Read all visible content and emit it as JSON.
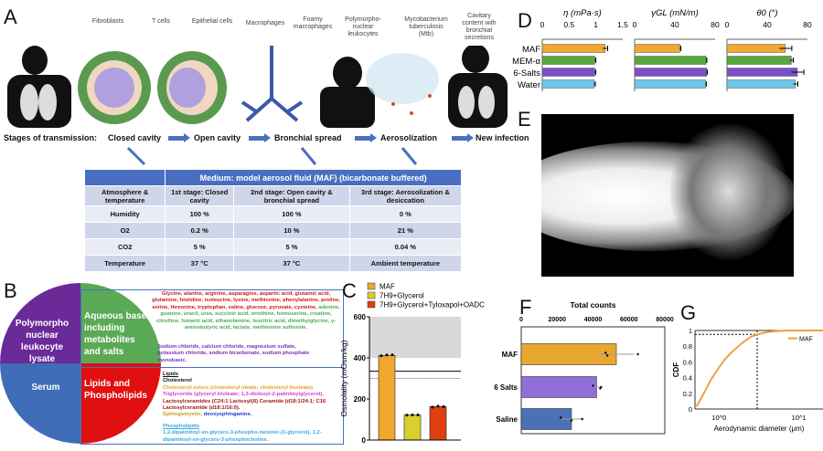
{
  "panel_labels": {
    "a": "A",
    "b": "B",
    "c": "C",
    "d": "D",
    "e": "E",
    "f": "F",
    "g": "G"
  },
  "panel_a": {
    "cells": [
      "Fibroblasts",
      "T cells",
      "Epithelial cells",
      "Macrophages",
      "Foamy macrophages",
      "Polymorpho-nuclear leukocytes",
      "Mycobacterium tuberculosis (Mtb)",
      "Cavitary content with bronchial secretions"
    ],
    "stages_label": "Stages of transmission:",
    "stages": [
      "Closed cavity",
      "Open cavity",
      "Bronchial spread",
      "Aerosolization",
      "New infection"
    ],
    "table": {
      "title": "Medium: model aerosol fluid (MAF) (bicarbonate buffered)",
      "header": [
        "Atmosphere & temperature",
        "1st stage: Closed cavity",
        "2nd stage: Open cavity & bronchial spread",
        "3rd stage: Aerosolization & desiccation"
      ],
      "rows": [
        [
          "Humidity",
          "100 %",
          "100 %",
          "0 %"
        ],
        [
          "O2",
          "0.2 %",
          "10 %",
          "21 %"
        ],
        [
          "CO2",
          "5 %",
          "5 %",
          "0.04 %"
        ],
        [
          "Temperature",
          "37 °C",
          "37 °C",
          "Ambient temperature"
        ]
      ]
    }
  },
  "panel_b": {
    "quadrants": [
      "Polymorpho nuclear leukocyte lysate",
      "Aqueous base including metabolites and salts",
      "Serum",
      "Lipids and Phospholipids"
    ],
    "amino": "Glycine, alanine, arginine, asparagine, aspartic acid, glutamic acid, glutamine, histidine, isoleucine, lysine, methionine, phenylalanine, proline, serine, threonine, tryptophan, valine, glucose, pyruvate, cysteine,",
    "metabolites": "adenine, guanine, uracil, urea, succinic acid, ornithine, homoserine, creatine, citrulline, fumaric acid, ethanolamine, isocitric acid, dimethylglycine, γ-aminobutyric acid, lactate, methionine sulfoxide.",
    "salts": "Sodium chloride, calcium chloride, magnesium sulfate, potassium chloride, sodium bicarbonate, sodium phosphate monobasic.",
    "lipids_title": "Lipids",
    "lipids": [
      {
        "text": "Cholesterol",
        "color": "#111111"
      },
      {
        "text": "Cholesteryl esters (cholesteryl oleate; cholesteryl linoleate).",
        "color": "#e8a020"
      },
      {
        "text": "Triglyceride (glyceryl trioleate; 1,3-dioleoyl-2-palmitoylglycerol).",
        "color": "#d040d0"
      },
      {
        "text": "Lactosylceramides (C24:1 Lactosyl(ß) Ceramide (d18:1/24:1; C16 Lactosylceramide (d18:1/16:0).",
        "color": "#a01818"
      }
    ],
    "sphingo": "Sphingomyelin,",
    "deoxy": "deoxysphinganine.",
    "phospho_title": "Phospholipids",
    "phospho": "1,2-dipalmitoyl-sn-glycero-3-phospho-racemic-(1-glycerol), 1,2-dipalmitoyl-sn-glycero-3-phosphocholine."
  },
  "chart_data": [
    {
      "id": "C",
      "type": "bar",
      "ylabel": "Osmolality (mOsm/kg)",
      "ylim": [
        0,
        600
      ],
      "yticks": [
        0,
        200,
        400,
        600
      ],
      "categories": [
        "MAF",
        "7H9+Glycerol",
        "7H9+Glycerol+Tyloxapol+OADC"
      ],
      "legend": [
        "MAF",
        "7H9+Glycerol",
        "7H9+Glycerol+Tyloxapol+OADC"
      ],
      "values": [
        412,
        122,
        163
      ],
      "points": [
        [
          410,
          414,
          415
        ],
        [
          121,
          122,
          122
        ],
        [
          160,
          165,
          163
        ]
      ],
      "colors": [
        "#f0a830",
        "#d8d030",
        "#e04010"
      ],
      "shaded_range": [
        400,
        600
      ],
      "reference_lines": [
        {
          "value": 335,
          "style": "solid"
        },
        {
          "value": 300,
          "style": "dotted"
        }
      ]
    },
    {
      "id": "D",
      "type": "bar",
      "orientation": "horizontal",
      "categories": [
        "MAF",
        "MEM-α",
        "6-Salts",
        "Water"
      ],
      "colors": [
        "#f0a830",
        "#58a840",
        "#7a50c8",
        "#70c8e8"
      ],
      "subplots": [
        {
          "title": "η (mPa·s)",
          "xlim": [
            0,
            1.5
          ],
          "xticks": [
            "0",
            "0.5",
            "1",
            "1.5"
          ],
          "values": [
            1.17,
            0.98,
            0.98,
            0.97
          ],
          "errors": [
            0.04,
            0.01,
            0.01,
            0.01
          ]
        },
        {
          "title": "γGL (mN/m)",
          "xlim": [
            0,
            80
          ],
          "xticks": [
            "0",
            "40",
            "80"
          ],
          "values": [
            45,
            71,
            71.5,
            70.5
          ],
          "errors": [
            0.5,
            0.3,
            0.3,
            0.3
          ]
        },
        {
          "title": "θ0 (°)",
          "xlim": [
            0,
            80
          ],
          "xticks": [
            "0",
            "40",
            "80"
          ],
          "values": [
            58,
            64,
            70,
            68
          ],
          "errors": [
            6,
            1.5,
            6,
            2
          ]
        }
      ]
    },
    {
      "id": "F",
      "type": "bar",
      "orientation": "horizontal",
      "xlabel": "Total counts",
      "xlim": [
        0,
        80000
      ],
      "xticks": [
        "0",
        "20000",
        "40000",
        "60000",
        "80000"
      ],
      "categories": [
        "MAF",
        "6 Salts",
        "Saline"
      ],
      "values": [
        53000,
        42000,
        28000
      ],
      "errors": [
        10000,
        1500,
        6000
      ],
      "points": [
        [
          47000,
          48000,
          65000
        ],
        [
          40000,
          44000,
          44500
        ],
        [
          22000,
          28000,
          34000
        ]
      ],
      "colors": [
        "#e8a830",
        "#9070d8",
        "#4a70b8"
      ]
    },
    {
      "id": "G",
      "type": "line",
      "xscale": "log",
      "xlabel": "Aerodynamic diameter (μm)",
      "ylabel": "CDF",
      "xlim": [
        0.5,
        20
      ],
      "ylim": [
        0,
        1
      ],
      "yticks": [
        "0",
        "0.2",
        "0.4",
        "0.6",
        "0.8",
        "1"
      ],
      "xticks": [
        "10^0",
        "10^1"
      ],
      "series": [
        {
          "name": "MAF",
          "color": "#f0a040",
          "x": [
            0.52,
            0.6,
            0.7,
            0.8,
            1.0,
            1.2,
            1.5,
            2.0,
            2.5,
            3.0,
            4,
            5,
            7,
            10,
            20
          ],
          "y": [
            0.03,
            0.14,
            0.27,
            0.38,
            0.53,
            0.64,
            0.74,
            0.85,
            0.92,
            0.95,
            0.98,
            0.99,
            1,
            1,
            1
          ]
        }
      ],
      "reference": {
        "x": 3.0,
        "y": 0.95
      }
    }
  ]
}
